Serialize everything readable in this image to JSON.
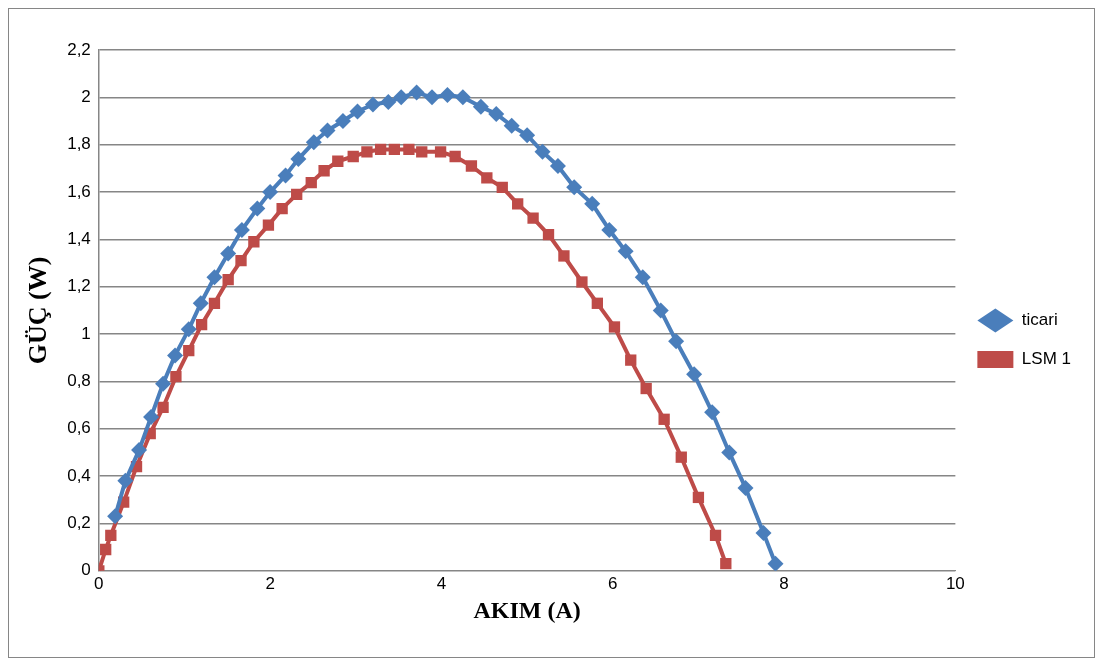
{
  "chart_data": {
    "type": "line",
    "xlabel": "AKIM (A)",
    "ylabel": "GÜÇ (W)",
    "xlim": [
      0,
      10
    ],
    "ylim": [
      0,
      2.2
    ],
    "xticks": [
      0,
      2,
      4,
      6,
      8,
      10
    ],
    "yticks": [
      0,
      {
        "value": 0.2,
        "label": "0,2"
      },
      {
        "value": 0.4,
        "label": "0,4"
      },
      {
        "value": 0.6,
        "label": "0,6"
      },
      {
        "value": 0.8,
        "label": "0,8"
      },
      1,
      {
        "value": 1.2,
        "label": "1,2"
      },
      {
        "value": 1.4,
        "label": "1,4"
      },
      {
        "value": 1.6,
        "label": "1,6"
      },
      {
        "value": 1.8,
        "label": "1,8"
      },
      2,
      {
        "value": 2.2,
        "label": "2,2"
      }
    ],
    "grid": "y",
    "legend": "right",
    "line_style": "solid",
    "series": [
      {
        "name": "ticari",
        "color": "#4a7ebb",
        "marker": "diamond",
        "x": [
          0.19,
          0.31,
          0.47,
          0.61,
          0.75,
          0.89,
          1.05,
          1.19,
          1.35,
          1.51,
          1.67,
          1.85,
          2.0,
          2.18,
          2.33,
          2.51,
          2.67,
          2.85,
          3.02,
          3.2,
          3.38,
          3.53,
          3.71,
          3.89,
          4.07,
          4.25,
          4.46,
          4.64,
          4.82,
          5.0,
          5.18,
          5.36,
          5.55,
          5.76,
          5.96,
          6.15,
          6.35,
          6.56,
          6.74,
          6.95,
          7.16,
          7.36,
          7.55,
          7.76,
          7.9
        ],
        "values": [
          0.23,
          0.38,
          0.51,
          0.65,
          0.79,
          0.91,
          1.02,
          1.13,
          1.24,
          1.34,
          1.44,
          1.53,
          1.6,
          1.67,
          1.74,
          1.81,
          1.86,
          1.9,
          1.94,
          1.97,
          1.98,
          2.0,
          2.02,
          2.0,
          2.01,
          2.0,
          1.96,
          1.93,
          1.88,
          1.84,
          1.77,
          1.71,
          1.62,
          1.55,
          1.44,
          1.35,
          1.24,
          1.1,
          0.97,
          0.83,
          0.67,
          0.5,
          0.35,
          0.16,
          0.03
        ]
      },
      {
        "name": "LSM 1",
        "color": "#be4b48",
        "marker": "square",
        "x": [
          0,
          0.08,
          0.14,
          0.29,
          0.44,
          0.6,
          0.75,
          0.9,
          1.05,
          1.2,
          1.35,
          1.51,
          1.66,
          1.81,
          1.98,
          2.14,
          2.31,
          2.48,
          2.63,
          2.79,
          2.97,
          3.13,
          3.29,
          3.45,
          3.62,
          3.77,
          3.99,
          4.16,
          4.35,
          4.53,
          4.71,
          4.89,
          5.07,
          5.25,
          5.43,
          5.64,
          5.82,
          6.02,
          6.21,
          6.39,
          6.6,
          6.8,
          7.0,
          7.2,
          7.32
        ],
        "values": [
          0,
          0.09,
          0.15,
          0.29,
          0.44,
          0.58,
          0.69,
          0.82,
          0.93,
          1.04,
          1.13,
          1.23,
          1.31,
          1.39,
          1.46,
          1.53,
          1.59,
          1.64,
          1.69,
          1.73,
          1.75,
          1.77,
          1.78,
          1.78,
          1.78,
          1.77,
          1.77,
          1.75,
          1.71,
          1.66,
          1.62,
          1.55,
          1.49,
          1.42,
          1.33,
          1.22,
          1.13,
          1.03,
          0.89,
          0.77,
          0.64,
          0.48,
          0.31,
          0.15,
          0.03
        ]
      }
    ]
  }
}
